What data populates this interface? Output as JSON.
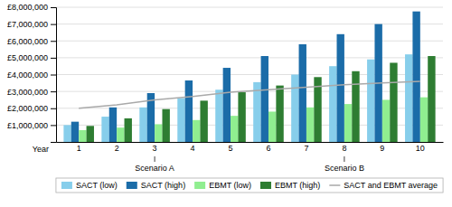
{
  "chart_data": {
    "type": "bar",
    "xlabel": "Year",
    "categories": [
      "1",
      "2",
      "3",
      "4",
      "5",
      "6",
      "7",
      "8",
      "9",
      "10"
    ],
    "series": [
      {
        "name": "SACT (low)",
        "type": "bar",
        "color": "#87CEEB",
        "values": [
          1000000,
          1500000,
          2050000,
          2600000,
          3100000,
          3550000,
          4000000,
          4500000,
          4900000,
          5200000
        ]
      },
      {
        "name": "SACT (high)",
        "type": "bar",
        "color": "#1B6CA8",
        "values": [
          1200000,
          2050000,
          2900000,
          3650000,
          4400000,
          5100000,
          5800000,
          6400000,
          7000000,
          7750000
        ]
      },
      {
        "name": "EBMT (low)",
        "type": "bar",
        "color": "#90EE90",
        "values": [
          700000,
          850000,
          1050000,
          1300000,
          1550000,
          1800000,
          2050000,
          2250000,
          2500000,
          2650000
        ]
      },
      {
        "name": "EBMT (high)",
        "type": "bar",
        "color": "#2E7D32",
        "values": [
          950000,
          1400000,
          1950000,
          2450000,
          2950000,
          3350000,
          3850000,
          4200000,
          4700000,
          5100000
        ]
      },
      {
        "name": "SACT and EBMT average",
        "type": "line",
        "color": "#A9A9A9",
        "values": [
          2000000,
          2200000,
          2500000,
          2700000,
          2950000,
          3100000,
          3250000,
          3400000,
          3500000,
          3600000
        ]
      }
    ],
    "annotations": [
      "Scenario A",
      "Scenario B"
    ],
    "ylim": [
      0,
      8000000
    ],
    "yticks": [
      {
        "value": 1000000,
        "label": "£1,000,000"
      },
      {
        "value": 2000000,
        "label": "£2,000,000"
      },
      {
        "value": 3000000,
        "label": "£3,000,000"
      },
      {
        "value": 4000000,
        "label": "£4,000,000"
      },
      {
        "value": 5000000,
        "label": "£5,000,000"
      },
      {
        "value": 6000000,
        "label": "£6,000,000"
      },
      {
        "value": 7000000,
        "label": "£7,000,000"
      },
      {
        "value": 8000000,
        "label": "£8,000,000"
      }
    ],
    "grid": true,
    "legend": "bottom"
  }
}
